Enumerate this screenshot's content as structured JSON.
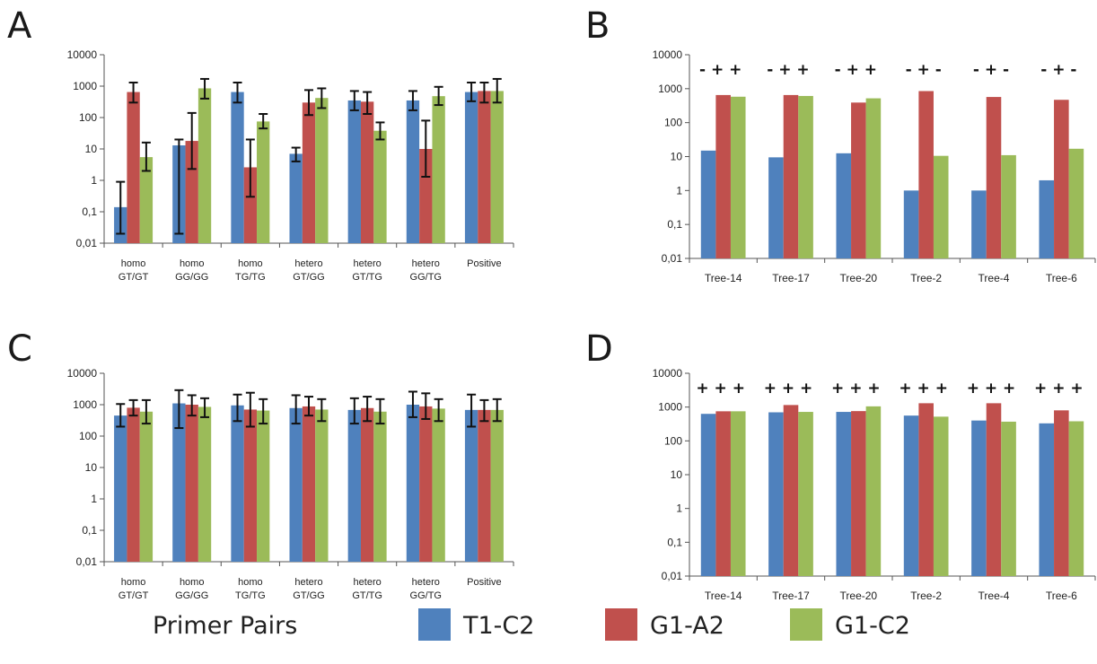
{
  "panels": [
    {
      "letter": "A"
    },
    {
      "letter": "B"
    },
    {
      "letter": "C"
    },
    {
      "letter": "D"
    }
  ],
  "legend": {
    "title": "Primer Pairs",
    "items": [
      {
        "label": "T1-C2",
        "color": "#4f81bd"
      },
      {
        "label": "G1-A2",
        "color": "#c0504d"
      },
      {
        "label": "G1-C2",
        "color": "#9bbb59"
      }
    ]
  },
  "chart_data": [
    {
      "panel": "A",
      "type": "bar",
      "scale": "log",
      "ylim": [
        0.01,
        10000
      ],
      "ytick_labels": [
        "10000",
        "1000",
        "100",
        "10",
        "1",
        "0,1",
        "0,01"
      ],
      "categories": [
        [
          "homo",
          "GT/GT"
        ],
        [
          "homo",
          "GG/GG"
        ],
        [
          "homo",
          "TG/TG"
        ],
        [
          "hetero",
          "GT/GG"
        ],
        [
          "hetero",
          "GT/TG"
        ],
        [
          "hetero",
          "GG/TG"
        ],
        [
          "Positive"
        ]
      ],
      "series": [
        {
          "name": "T1-C2",
          "values": [
            0.14,
            13,
            650,
            7,
            350,
            350,
            650
          ],
          "error_bars": [
            [
              0.02,
              0.9
            ],
            [
              0.02,
              20
            ],
            [
              300,
              1300
            ],
            [
              4,
              11
            ],
            [
              170,
              700
            ],
            [
              170,
              700
            ],
            [
              330,
              1300
            ]
          ]
        },
        {
          "name": "G1-A2",
          "values": [
            650,
            18,
            2.6,
            300,
            320,
            10,
            700
          ],
          "error_bars": [
            [
              300,
              1300
            ],
            [
              2.3,
              140
            ],
            [
              0.3,
              20
            ],
            [
              120,
              750
            ],
            [
              130,
              650
            ],
            [
              1.3,
              80
            ],
            [
              300,
              1300
            ]
          ]
        },
        {
          "name": "G1-C2",
          "values": [
            5.5,
            850,
            75,
            420,
            38,
            480,
            700
          ],
          "error_bars": [
            [
              2,
              16
            ],
            [
              400,
              1700
            ],
            [
              45,
              130
            ],
            [
              200,
              850
            ],
            [
              20,
              70
            ],
            [
              250,
              950
            ],
            [
              300,
              1700
            ]
          ]
        }
      ],
      "grid": false
    },
    {
      "panel": "B",
      "type": "bar",
      "scale": "log",
      "ylim": [
        0.01,
        10000
      ],
      "ytick_labels": [
        "10000",
        "1000",
        "100",
        "10",
        "1",
        "0,1",
        "0,01"
      ],
      "categories": [
        [
          "Tree-14"
        ],
        [
          "Tree-17"
        ],
        [
          "Tree-20"
        ],
        [
          "Tree-2"
        ],
        [
          "Tree-4"
        ],
        [
          "Tree-6"
        ]
      ],
      "annotations": [
        "- + +",
        "- + +",
        "- + +",
        "- + -",
        "- + -",
        "- + -"
      ],
      "series": [
        {
          "name": "T1-C2",
          "values": [
            15,
            9.5,
            12.5,
            1,
            1,
            2
          ]
        },
        {
          "name": "G1-A2",
          "values": [
            650,
            650,
            390,
            850,
            570,
            470
          ]
        },
        {
          "name": "G1-C2",
          "values": [
            580,
            610,
            520,
            10.5,
            11,
            17
          ]
        }
      ],
      "grid": false
    },
    {
      "panel": "C",
      "type": "bar",
      "scale": "log",
      "ylim": [
        0.01,
        10000
      ],
      "ytick_labels": [
        "10000",
        "1000",
        "100",
        "10",
        "1",
        "0,1",
        "0,01"
      ],
      "categories": [
        [
          "homo",
          "GT/GT"
        ],
        [
          "homo",
          "GG/GG"
        ],
        [
          "homo",
          "TG/TG"
        ],
        [
          "hetero",
          "GT/GG"
        ],
        [
          "hetero",
          "GT/TG"
        ],
        [
          "hetero",
          "GG/TG"
        ],
        [
          "Positive"
        ]
      ],
      "series": [
        {
          "name": "T1-C2",
          "values": [
            450,
            1100,
            950,
            780,
            680,
            1000,
            680
          ],
          "error_bars": [
            [
              200,
              1050
            ],
            [
              180,
              2900
            ],
            [
              300,
              2100
            ],
            [
              250,
              2000
            ],
            [
              250,
              1600
            ],
            [
              400,
              2600
            ],
            [
              200,
              2100
            ]
          ]
        },
        {
          "name": "G1-A2",
          "values": [
            800,
            1000,
            700,
            880,
            780,
            880,
            680
          ],
          "error_bars": [
            [
              450,
              1400
            ],
            [
              450,
              2000
            ],
            [
              200,
              2400
            ],
            [
              450,
              1800
            ],
            [
              300,
              1800
            ],
            [
              350,
              2300
            ],
            [
              300,
              1400
            ]
          ]
        },
        {
          "name": "G1-C2",
          "values": [
            600,
            850,
            650,
            700,
            600,
            750,
            680
          ],
          "error_bars": [
            [
              250,
              1400
            ],
            [
              400,
              1600
            ],
            [
              250,
              1500
            ],
            [
              300,
              1500
            ],
            [
              250,
              1500
            ],
            [
              300,
              1500
            ],
            [
              300,
              1500
            ]
          ]
        }
      ],
      "grid": false
    },
    {
      "panel": "D",
      "type": "bar",
      "scale": "log",
      "ylim": [
        0.01,
        10000
      ],
      "ytick_labels": [
        "10000",
        "1000",
        "100",
        "10",
        "1",
        "0,1",
        "0,01"
      ],
      "categories": [
        [
          "Tree-14"
        ],
        [
          "Tree-17"
        ],
        [
          "Tree-20"
        ],
        [
          "Tree-2"
        ],
        [
          "Tree-4"
        ],
        [
          "Tree-6"
        ]
      ],
      "annotations": [
        "+ + +",
        "+ + +",
        "+ + +",
        "+ + +",
        "+ + +",
        "+ + +"
      ],
      "series": [
        {
          "name": "T1-C2",
          "values": [
            630,
            700,
            720,
            560,
            400,
            330
          ]
        },
        {
          "name": "G1-A2",
          "values": [
            750,
            1150,
            760,
            1300,
            1300,
            800
          ]
        },
        {
          "name": "G1-C2",
          "values": [
            750,
            720,
            1050,
            520,
            370,
            380
          ]
        }
      ],
      "grid": false
    }
  ]
}
